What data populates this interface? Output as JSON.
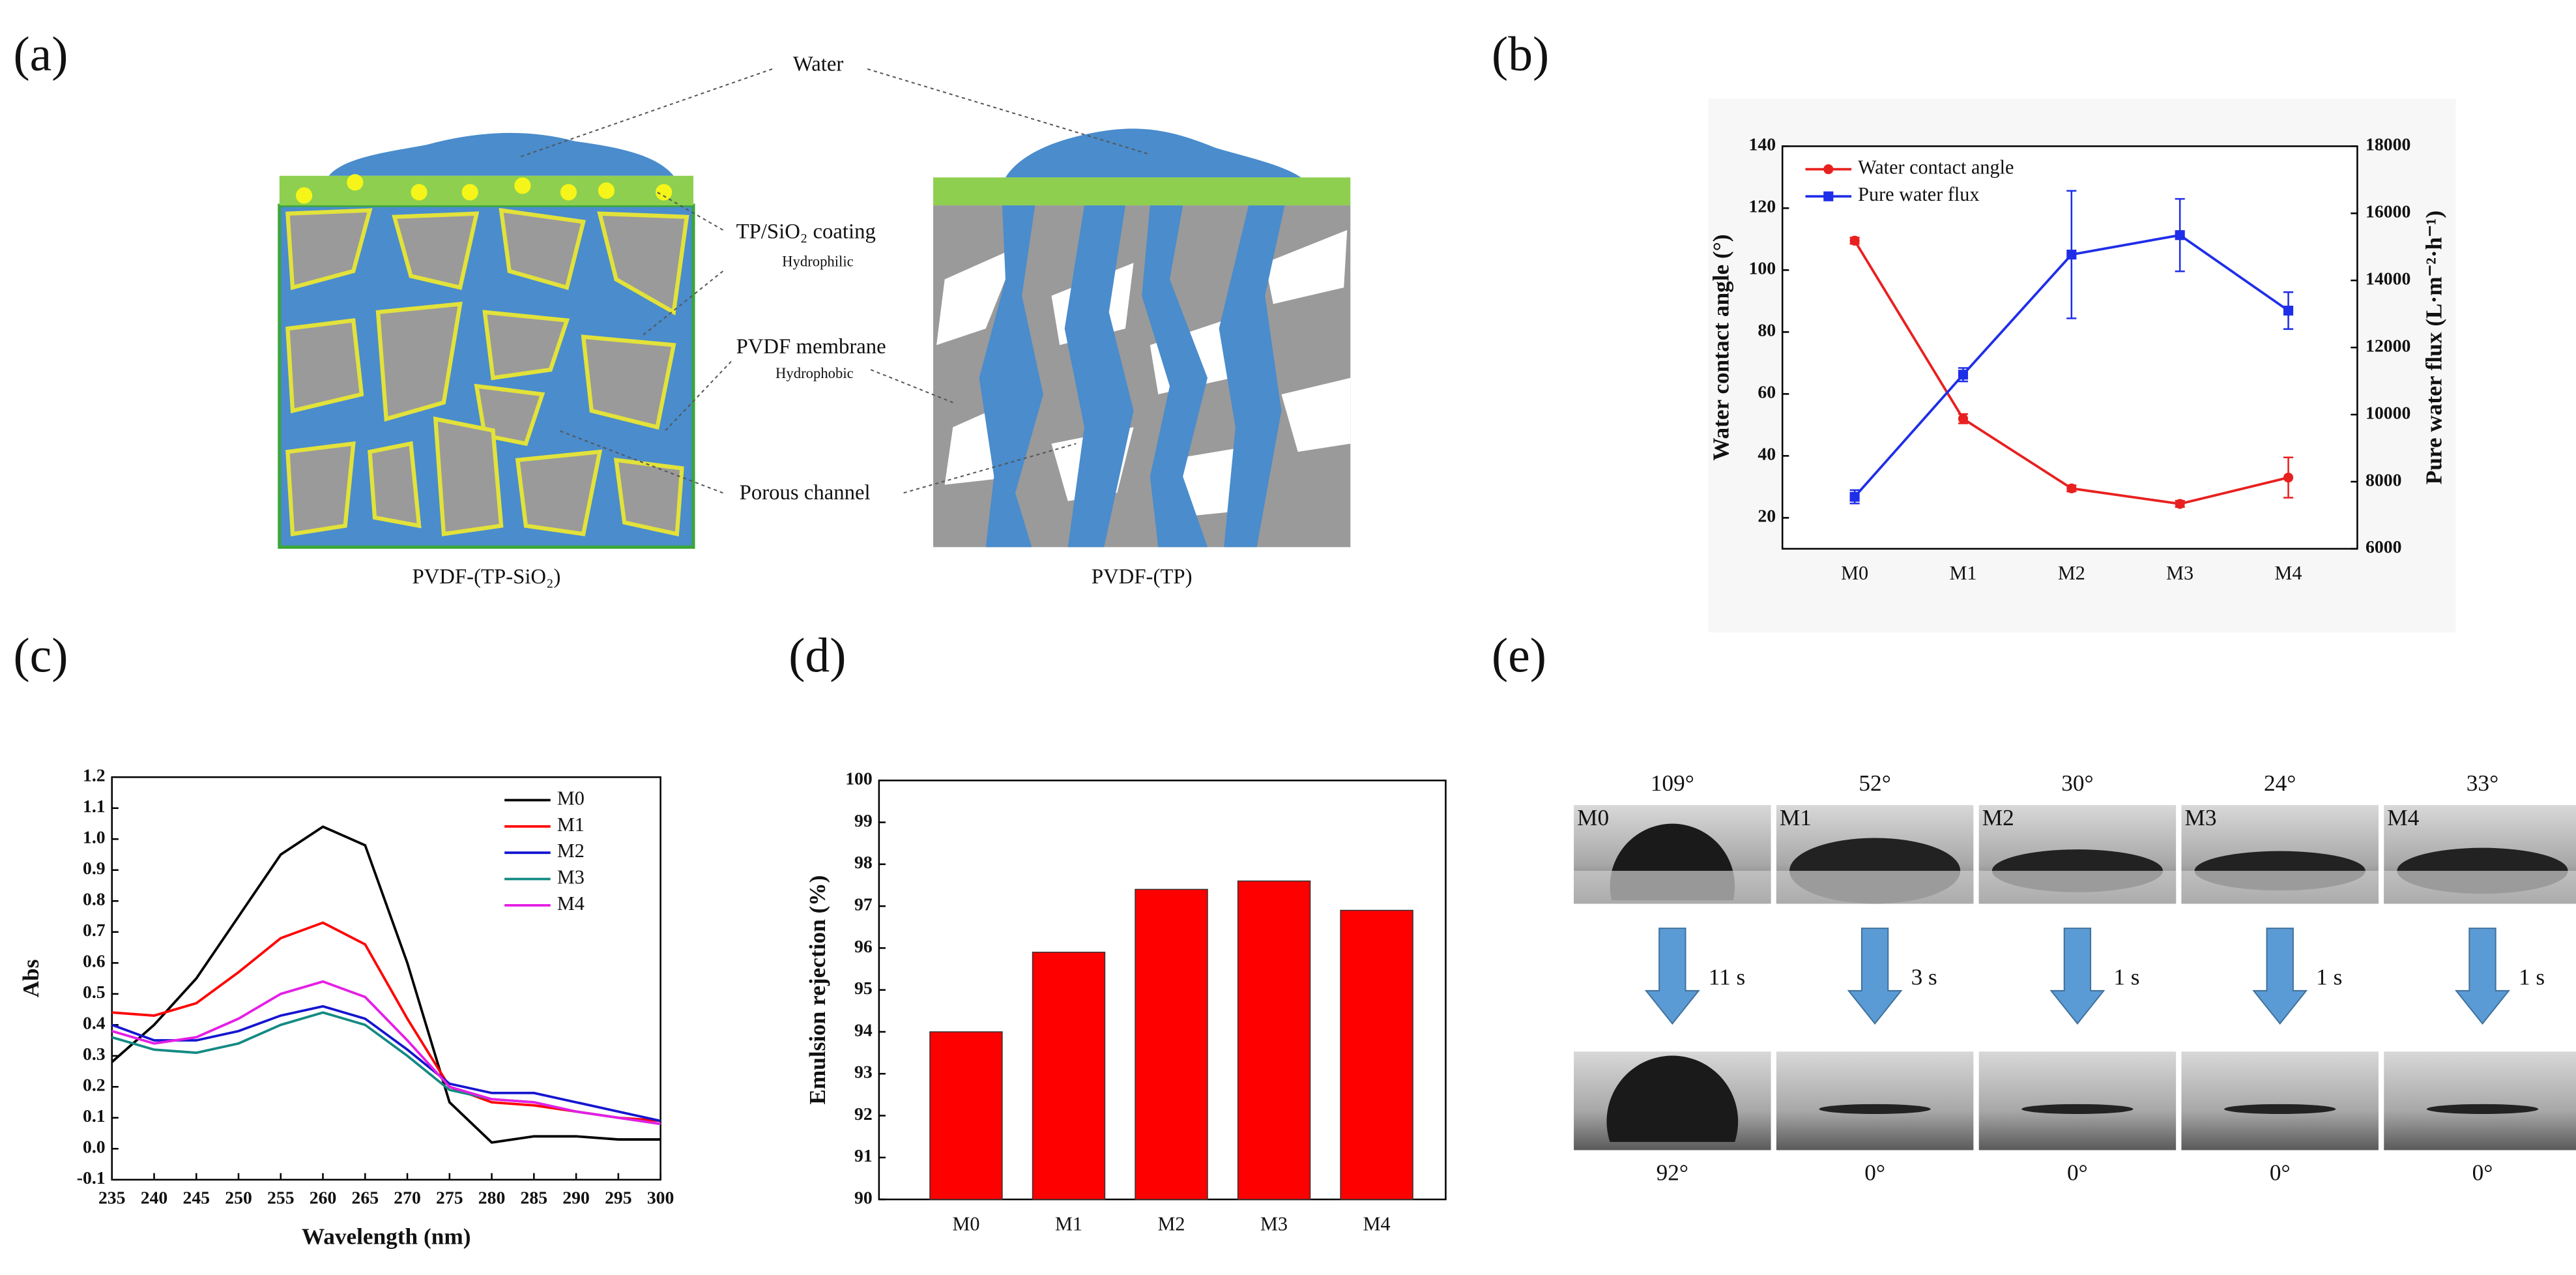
{
  "panel_labels": [
    "(a)",
    "(b)",
    "(c)",
    "(d)",
    "(e)"
  ],
  "diagram": {
    "labels": [
      "Water",
      "TP/SiO₂ coating",
      "Hydrophilic",
      "PVDF membrane",
      "Hydrophobic",
      "Porous channel"
    ],
    "captions": [
      "PVDF-(TP-SiO₂)",
      "PVDF-(TP)"
    ]
  },
  "chart_data": [
    {
      "type": "line",
      "categories": [
        "M0",
        "M1",
        "M2",
        "M3",
        "M4"
      ],
      "ylabel": "Water contact angle (°)",
      "y2label": "Pure water flux (L·m⁻²·h⁻¹)",
      "ylim": [
        10,
        140
      ],
      "yticks": [
        20,
        40,
        60,
        80,
        100,
        120,
        140
      ],
      "y2lim": [
        6000,
        18000
      ],
      "y2ticks": [
        6000,
        8000,
        10000,
        12000,
        14000,
        16000,
        18000
      ],
      "legend": "upper left",
      "series": [
        {
          "name": "Water contact angle",
          "color": "#e8201f",
          "marker": "circle",
          "values": [
            109.5,
            52,
            29.5,
            24.5,
            33
          ],
          "errors": [
            1,
            1.5,
            1,
            1,
            6.5
          ]
        },
        {
          "name": "Pure water flux",
          "color": "#1f2ee8",
          "marker": "square",
          "axis": "y2",
          "values": [
            7550,
            11190,
            14770,
            15350,
            13100
          ],
          "errors": [
            200,
            200,
            1900,
            1080,
            550
          ]
        }
      ]
    },
    {
      "type": "line",
      "xlabel": "Wavelength (nm)",
      "ylabel": "Abs",
      "x": [
        235,
        240,
        245,
        250,
        255,
        260,
        265,
        270,
        275,
        280,
        285,
        290,
        295,
        300
      ],
      "xlim": [
        235,
        300
      ],
      "xticks": [
        235,
        240,
        245,
        250,
        255,
        260,
        265,
        270,
        275,
        280,
        285,
        290,
        295,
        300
      ],
      "ylim": [
        -0.1,
        1.2
      ],
      "yticks": [
        -0.1,
        {
          "value": 0,
          "label": "0.0"
        },
        0.1,
        0.2,
        0.3,
        0.4,
        0.5,
        0.6,
        0.7,
        0.8,
        0.9,
        {
          "value": 1,
          "label": "1.0"
        },
        1.1,
        1.2
      ],
      "legend": "upper right",
      "series": [
        {
          "name": "M0",
          "color": "#000000",
          "values": [
            0.28,
            0.4,
            0.55,
            0.75,
            0.95,
            1.04,
            0.98,
            0.6,
            0.15,
            0.02,
            0.04,
            0.04,
            0.03,
            0.03
          ]
        },
        {
          "name": "M1",
          "color": "#ff0000",
          "values": [
            0.44,
            0.43,
            0.47,
            0.57,
            0.68,
            0.73,
            0.66,
            0.42,
            0.2,
            0.15,
            0.14,
            0.12,
            0.1,
            0.09
          ]
        },
        {
          "name": "M2",
          "color": "#1515d0",
          "values": [
            0.4,
            0.35,
            0.35,
            0.38,
            0.43,
            0.46,
            0.42,
            0.32,
            0.21,
            0.18,
            0.18,
            0.15,
            0.12,
            0.09
          ]
        },
        {
          "name": "M3",
          "color": "#138a83",
          "values": [
            0.36,
            0.32,
            0.31,
            0.34,
            0.4,
            0.44,
            0.4,
            0.3,
            0.19,
            0.16,
            0.15,
            0.12,
            0.1,
            0.08
          ]
        },
        {
          "name": "M4",
          "color": "#e51ee5",
          "values": [
            0.38,
            0.34,
            0.36,
            0.42,
            0.5,
            0.54,
            0.49,
            0.35,
            0.2,
            0.16,
            0.15,
            0.12,
            0.1,
            0.08
          ]
        }
      ]
    },
    {
      "type": "bar",
      "categories": [
        "M0",
        "M1",
        "M2",
        "M3",
        "M4"
      ],
      "ylabel": "Emulsion rejection (%)",
      "ylim": [
        90,
        100
      ],
      "yticks": [
        90,
        91,
        92,
        93,
        94,
        95,
        96,
        97,
        98,
        99,
        100
      ],
      "color": "#ff0000",
      "values": [
        94,
        95.9,
        97.4,
        97.6,
        96.9
      ]
    }
  ],
  "droplets": {
    "samples": [
      "M0",
      "M1",
      "M2",
      "M3",
      "M4"
    ],
    "before": [
      "109°",
      "52°",
      "30°",
      "24°",
      "33°"
    ],
    "times": [
      "11 s",
      "3 s",
      "1 s",
      "1 s",
      "1 s"
    ],
    "after": [
      "92°",
      "0°",
      "0°",
      "0°",
      "0°"
    ]
  }
}
